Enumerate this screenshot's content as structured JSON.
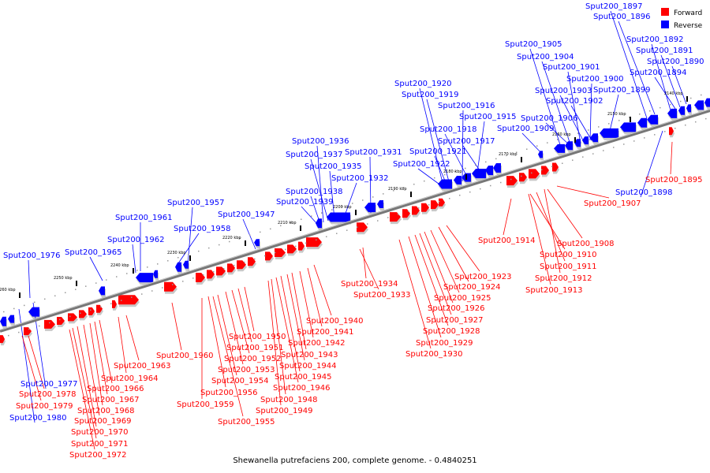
{
  "caption": "Shewanella putrefaciens 200, complete genome. - 0.4840251",
  "legend": [
    {
      "label": "Forward",
      "color": "#ff0000"
    },
    {
      "label": "Reverse",
      "color": "#0000ff"
    }
  ],
  "colors": {
    "forward": "#ff0000",
    "reverse": "#0000ff",
    "axis": "#888888"
  },
  "ticks": [
    {
      "kbp": 2140,
      "label": "2140 kbp"
    },
    {
      "kbp": 2150,
      "label": "2150 kbp"
    },
    {
      "kbp": 2160,
      "label": "2160 kbp"
    },
    {
      "kbp": 2170,
      "label": "2170 kbp"
    },
    {
      "kbp": 2180,
      "label": "2180 kbp"
    },
    {
      "kbp": 2190,
      "label": "2190 kbp"
    },
    {
      "kbp": 2200,
      "label": "2200 kbp"
    },
    {
      "kbp": 2210,
      "label": "2210 kbp"
    },
    {
      "kbp": 2220,
      "label": "2220 kbp"
    },
    {
      "kbp": 2230,
      "label": "2230 kbp"
    },
    {
      "kbp": 2240,
      "label": "2240 kbp"
    },
    {
      "kbp": 2250,
      "label": "2250 kbp"
    },
    {
      "kbp": 2260,
      "label": "2260 kbp"
    }
  ],
  "reverse_genes": [
    "Sput200_1897",
    "Sput200_1896",
    "Sput200_1892",
    "Sput200_1891",
    "Sput200_1890",
    "Sput200_1894",
    "Sput200_1905",
    "Sput200_1904",
    "Sput200_1901",
    "Sput200_1900",
    "Sput200_1903",
    "Sput200_1899",
    "Sput200_1902",
    "Sput200_1906",
    "Sput200_1909",
    "Sput200_1920",
    "Sput200_1919",
    "Sput200_1916",
    "Sput200_1915",
    "Sput200_1918",
    "Sput200_1917",
    "Sput200_1921",
    "Sput200_1922",
    "Sput200_1936",
    "Sput200_1937",
    "Sput200_1931",
    "Sput200_1935",
    "Sput200_1932",
    "Sput200_1938",
    "Sput200_1939",
    "Sput200_1957",
    "Sput200_1947",
    "Sput200_1961",
    "Sput200_1958",
    "Sput200_1962",
    "Sput200_1965",
    "Sput200_1976",
    "Sput200_1977",
    "Sput200_1980",
    "Sput200_1898"
  ],
  "forward_genes": [
    "Sput200_1895",
    "Sput200_1907",
    "Sput200_1914",
    "Sput200_1908",
    "Sput200_1910",
    "Sput200_1911",
    "Sput200_1912",
    "Sput200_1913",
    "Sput200_1923",
    "Sput200_1924",
    "Sput200_1925",
    "Sput200_1926",
    "Sput200_1927",
    "Sput200_1928",
    "Sput200_1929",
    "Sput200_1930",
    "Sput200_1934",
    "Sput200_1933",
    "Sput200_1940",
    "Sput200_1941",
    "Sput200_1942",
    "Sput200_1943",
    "Sput200_1944",
    "Sput200_1945",
    "Sput200_1946",
    "Sput200_1948",
    "Sput200_1949",
    "Sput200_1950",
    "Sput200_1951",
    "Sput200_1952",
    "Sput200_1953",
    "Sput200_1954",
    "Sput200_1956",
    "Sput200_1959",
    "Sput200_1955",
    "Sput200_1960",
    "Sput200_1963",
    "Sput200_1964",
    "Sput200_1966",
    "Sput200_1967",
    "Sput200_1968",
    "Sput200_1969",
    "Sput200_1970",
    "Sput200_1971",
    "Sput200_1972",
    "Sput200_1978",
    "Sput200_1979"
  ]
}
